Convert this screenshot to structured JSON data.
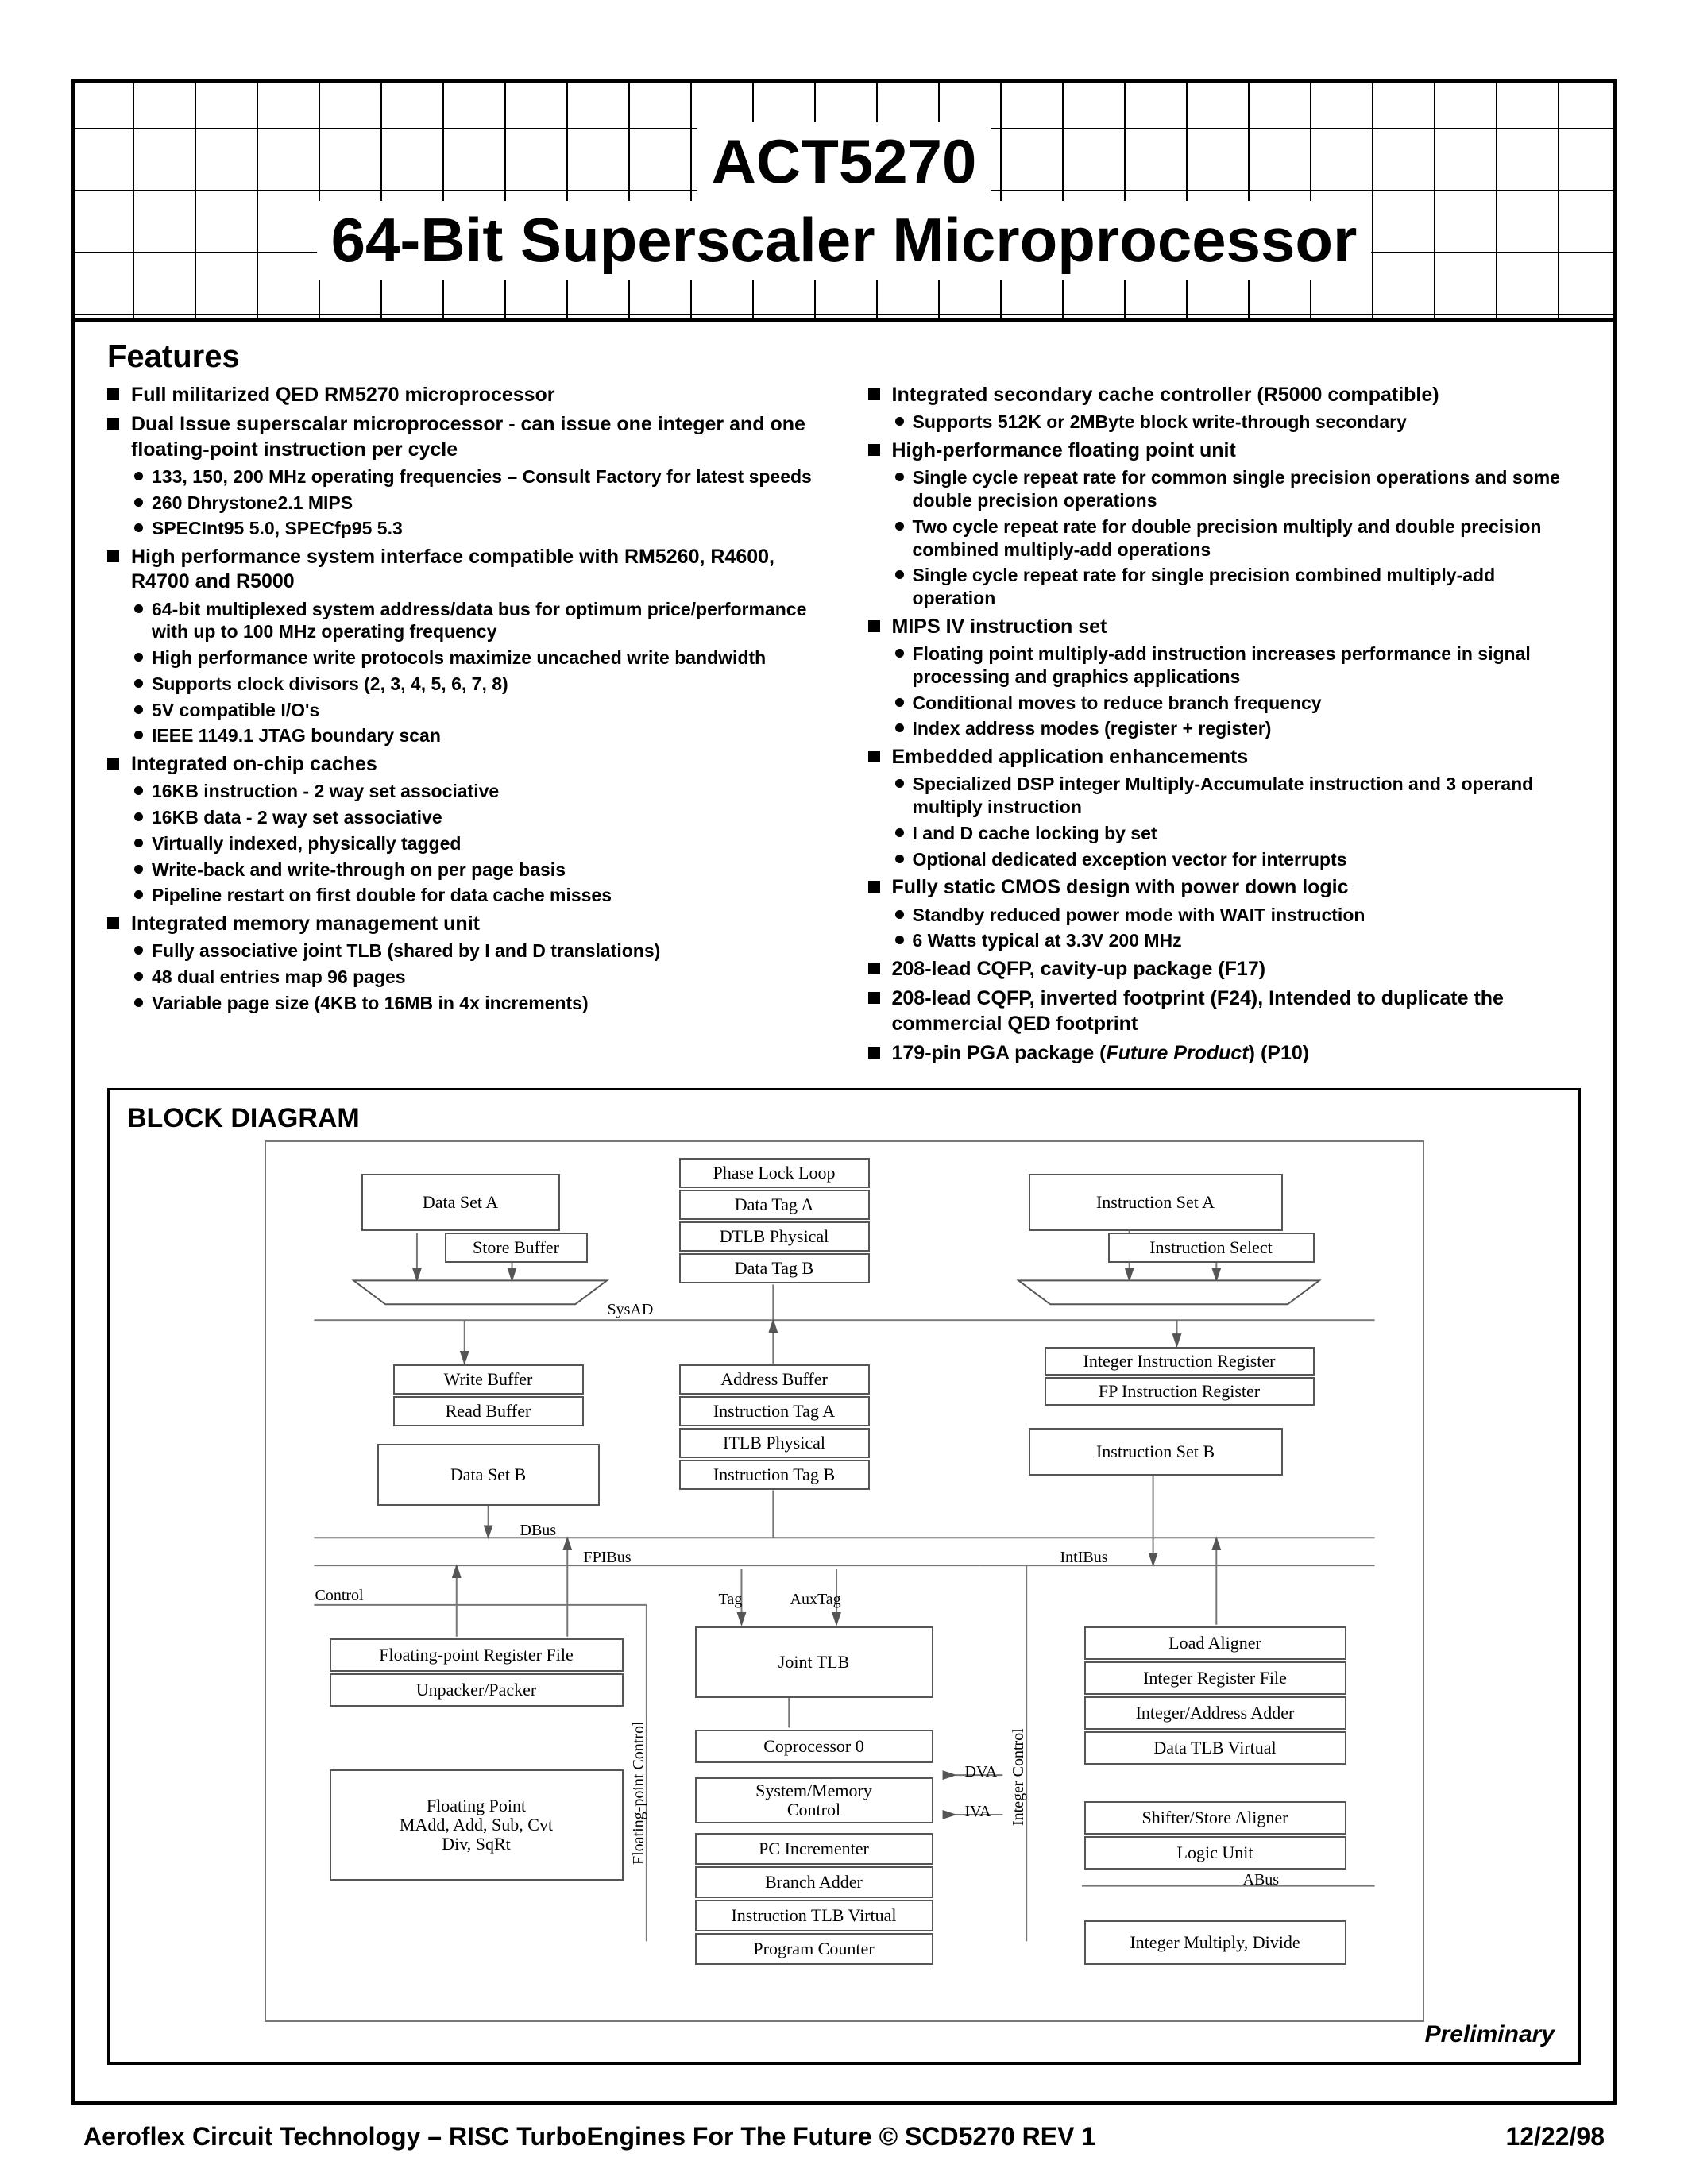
{
  "title": {
    "line1": "ACT5270",
    "line2": "64-Bit Superscaler Microprocessor"
  },
  "features_heading": "Features",
  "left_column": [
    {
      "text": "Full militarized QED RM5270 microprocessor"
    },
    {
      "text": "Dual Issue superscalar microprocessor - can issue one integer and one floating-point instruction per cycle",
      "sub": [
        "133, 150, 200 MHz operating frequencies – Consult Factory for latest speeds",
        "260 Dhrystone2.1 MIPS",
        "SPECInt95 5.0, SPECfp95 5.3"
      ]
    },
    {
      "text": "High performance system interface compatible with RM5260, R4600, R4700 and R5000",
      "sub": [
        "64-bit multiplexed system address/data bus for optimum price/performance with up to 100 MHz operating frequency",
        "High performance write protocols maximize uncached write bandwidth",
        "Supports clock divisors (2, 3, 4, 5, 6, 7, 8)",
        "5V compatible I/O's",
        "IEEE 1149.1 JTAG boundary scan"
      ]
    },
    {
      "text": "Integrated on-chip caches",
      "sub": [
        "16KB instruction - 2 way set associative",
        "16KB data - 2 way set associative",
        "Virtually indexed, physically tagged",
        "Write-back and write-through on per page basis",
        "Pipeline restart on first double for data cache misses"
      ]
    },
    {
      "text": "Integrated memory management unit",
      "sub": [
        "Fully associative joint TLB (shared by I and D translations)",
        "48 dual entries map 96 pages",
        "Variable page size (4KB to 16MB in 4x increments)"
      ]
    }
  ],
  "right_column": [
    {
      "text": "Integrated secondary cache controller (R5000 compatible)",
      "sub": [
        "Supports 512K or 2MByte block write-through secondary"
      ]
    },
    {
      "text": "High-performance floating point unit",
      "sub": [
        "Single cycle repeat rate for common single precision operations and some double precision operations",
        "Two cycle repeat rate for double precision multiply and double precision combined multiply-add operations",
        "Single cycle repeat rate for single precision combined multiply-add operation"
      ]
    },
    {
      "text": "MIPS IV instruction set",
      "sub": [
        "Floating point multiply-add instruction increases performance in signal processing and graphics applications",
        "Conditional moves to reduce branch frequency",
        "Index address modes (register + register)"
      ]
    },
    {
      "text": "Embedded application enhancements",
      "sub": [
        "Specialized DSP integer Multiply-Accumulate instruction and 3 operand multiply instruction",
        "I and D cache locking by set",
        "Optional dedicated exception vector for interrupts"
      ]
    },
    {
      "text": "Fully static CMOS design with power down logic",
      "sub": [
        "Standby reduced power mode with WAIT instruction",
        "6 Watts typical at 3.3V 200 MHz"
      ]
    },
    {
      "text": "208-lead CQFP, cavity-up package (F17)"
    },
    {
      "text": "208-lead CQFP, inverted footprint (F24), Intended to duplicate the commercial QED footprint"
    },
    {
      "text": "179-pin PGA package (Future Product) (P10)"
    }
  ],
  "diagram": {
    "title": "BLOCK DIAGRAM",
    "preliminary": "Preliminary",
    "blocks": {
      "data_set_a": "Data Set A",
      "store_buffer": "Store Buffer",
      "phase_lock_loop": "Phase Lock Loop",
      "data_tag_a": "Data Tag A",
      "dtlb_physical": "DTLB Physical",
      "data_tag_b": "Data Tag B",
      "instruction_set_a": "Instruction Set A",
      "instruction_select": "Instruction Select",
      "integer_ir": "Integer Instruction Register",
      "fp_ir": "FP Instruction Register",
      "write_buffer": "Write Buffer",
      "read_buffer": "Read Buffer",
      "data_set_b": "Data Set B",
      "address_buffer": "Address Buffer",
      "instr_tag_a": "Instruction Tag A",
      "itlb_physical": "ITLB Physical",
      "instr_tag_b": "Instruction Tag B",
      "instruction_set_b": "Instruction Set B",
      "fp_reg_file": "Floating-point Register File",
      "unpacker": "Unpacker/Packer",
      "fp_unit": "Floating Point\nMAdd, Add, Sub, Cvt\nDiv, SqRt",
      "joint_tlb": "Joint TLB",
      "coprocessor0": "Coprocessor 0",
      "sys_mem_ctrl": "System/Memory\nControl",
      "pc_incrementer": "PC Incrementer",
      "branch_adder": "Branch Adder",
      "instr_tlb_virtual": "Instruction TLB Virtual",
      "program_counter": "Program Counter",
      "load_aligner": "Load Aligner",
      "int_reg_file": "Integer Register File",
      "int_addr_adder": "Integer/Address Adder",
      "data_tlb_virtual": "Data TLB Virtual",
      "shifter_store": "Shifter/Store Aligner",
      "logic_unit": "Logic Unit",
      "int_mult_div": "Integer Multiply, Divide"
    },
    "labels": {
      "sysad": "SysAD",
      "dbus": "DBus",
      "fpibus": "FPIBus",
      "intibus": "IntIBus",
      "control": "Control",
      "tag": "Tag",
      "auxtag": "AuxTag",
      "dva": "DVA",
      "iva": "IVA",
      "abus": "ABus",
      "fp_ctrl": "Floating-point Control",
      "int_ctrl": "Integer Control"
    }
  },
  "footer": {
    "left": "Aeroflex Circuit Technology  – RISC TurboEngines For The Future © SCD5270 REV 1",
    "right": "12/22/98"
  }
}
